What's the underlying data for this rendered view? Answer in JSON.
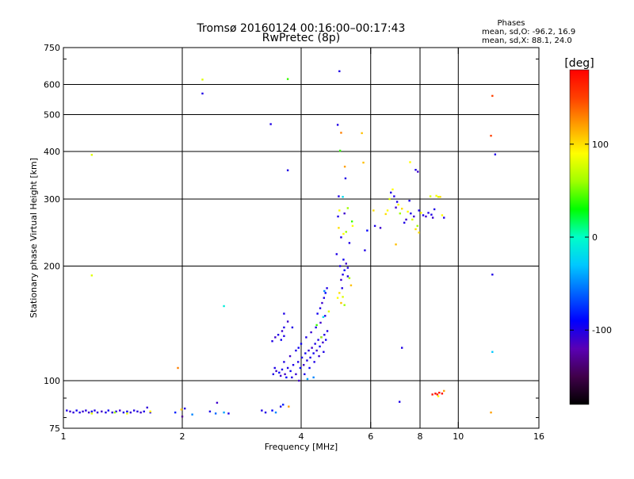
{
  "chart_data": {
    "type": "scatter",
    "title_line1": "Tromsø 20160124 00:16:00–00:17:43",
    "title_line2": "RwPretec (8p)",
    "info": {
      "heading": "Phases",
      "line1": "mean, sd,O: -96.2, 16.9",
      "line2": "mean, sd,X:  88.1, 24.0"
    },
    "xlabel": "Frequency [MHz]",
    "ylabel": "Stationary phase Virtual Height [km]",
    "x_scale": "log",
    "y_scale": "log",
    "xlim": [
      1,
      16
    ],
    "ylim": [
      75,
      750
    ],
    "x_ticks": [
      {
        "value": 1,
        "label": "1"
      },
      {
        "value": 2,
        "label": "2"
      },
      {
        "value": 4,
        "label": "4"
      },
      {
        "value": 6,
        "label": "6"
      },
      {
        "value": 8,
        "label": "8"
      },
      {
        "value": 10,
        "label": "10"
      },
      {
        "value": 16,
        "label": "16"
      }
    ],
    "y_ticks": [
      {
        "value": 75,
        "label": "75"
      },
      {
        "value": 100,
        "label": "100"
      },
      {
        "value": 200,
        "label": "200"
      },
      {
        "value": 300,
        "label": "300"
      },
      {
        "value": 400,
        "label": "400"
      },
      {
        "value": 500,
        "label": "500"
      },
      {
        "value": 600,
        "label": "600"
      },
      {
        "value": 750,
        "label": "750"
      }
    ],
    "x_grid": [
      2,
      4,
      6,
      8,
      10
    ],
    "y_grid": [
      100,
      200,
      300,
      400,
      500,
      600
    ],
    "grid": true,
    "colorbar": {
      "label": "[deg]",
      "range": [
        -180,
        180
      ],
      "ticks": [
        {
          "value": 100,
          "label": "100"
        },
        {
          "value": 0,
          "label": "0"
        },
        {
          "value": -100,
          "label": "-100"
        }
      ],
      "stops": [
        "#000000",
        "#40004a",
        "#5a00b4",
        "#0000ff",
        "#0064ff",
        "#00c8ff",
        "#00ffc8",
        "#00ff00",
        "#a0ff00",
        "#ffff00",
        "#ffa000",
        "#ff4000",
        "#ff0000"
      ]
    },
    "series": [
      {
        "values": [
          [
            1.02,
            83.5,
            -100
          ],
          [
            1.04,
            83,
            -110
          ],
          [
            1.06,
            82.5,
            -105
          ],
          [
            1.08,
            83.5,
            -95
          ],
          [
            1.1,
            82.5,
            -100
          ],
          [
            1.12,
            83,
            -108
          ],
          [
            1.14,
            83.5,
            -102
          ],
          [
            1.16,
            82.5,
            -110
          ],
          [
            1.18,
            83,
            -98
          ],
          [
            1.2,
            83.5,
            -100
          ],
          [
            1.22,
            82.5,
            -106
          ],
          [
            1.25,
            83,
            -112
          ],
          [
            1.28,
            82.5,
            -100
          ],
          [
            1.3,
            83.5,
            -95
          ],
          [
            1.33,
            82.5,
            -104
          ],
          [
            1.36,
            83,
            -100
          ],
          [
            1.39,
            83.5,
            -110
          ],
          [
            1.42,
            82.5,
            -100
          ],
          [
            1.45,
            83,
            -96
          ],
          [
            1.48,
            82.5,
            -108
          ],
          [
            1.51,
            83.5,
            -100
          ],
          [
            1.54,
            83,
            -102
          ],
          [
            1.57,
            82.5,
            -110
          ],
          [
            1.6,
            83,
            -98
          ],
          [
            1.63,
            85,
            -105
          ],
          [
            1.66,
            82.5,
            -100
          ],
          [
            1.35,
            82.5,
            60
          ],
          [
            1.45,
            82,
            80
          ],
          [
            1.18,
            82,
            80
          ],
          [
            1.66,
            83,
            95
          ],
          [
            1.92,
            82.5,
            -80
          ],
          [
            2.03,
            84.5,
            -100
          ],
          [
            2.12,
            81.5,
            -50
          ],
          [
            2.35,
            83,
            -100
          ],
          [
            2.43,
            82,
            -60
          ],
          [
            2.45,
            87.5,
            -110
          ],
          [
            2.55,
            82.5,
            -40
          ],
          [
            2.62,
            82,
            -100
          ],
          [
            3.18,
            83.5,
            -100
          ],
          [
            3.25,
            82.5,
            -100
          ],
          [
            3.38,
            83.5,
            -90
          ],
          [
            3.45,
            82.5,
            -50
          ],
          [
            3.55,
            85.5,
            -100
          ],
          [
            3.6,
            86.5,
            -80
          ],
          [
            3.72,
            85.5,
            120
          ],
          [
            1.99,
            84,
            110
          ],
          [
            2.0,
            80.5,
            -130
          ],
          [
            3.4,
            104,
            -100
          ],
          [
            3.46,
            106,
            -110
          ],
          [
            3.52,
            105,
            -90
          ],
          [
            3.58,
            107,
            -100
          ],
          [
            3.64,
            104,
            -112
          ],
          [
            3.7,
            108,
            -100
          ],
          [
            3.76,
            106,
            -95
          ],
          [
            3.82,
            110,
            -100
          ],
          [
            3.88,
            104,
            -108
          ],
          [
            3.93,
            112,
            -100
          ],
          [
            3.98,
            108,
            -90
          ],
          [
            4.02,
            115,
            -100
          ],
          [
            4.06,
            110,
            -110
          ],
          [
            4.1,
            118,
            -95
          ],
          [
            4.14,
            113,
            -100
          ],
          [
            4.18,
            120,
            -105
          ],
          [
            4.22,
            115,
            -100
          ],
          [
            4.26,
            122,
            -110
          ],
          [
            4.3,
            118,
            -95
          ],
          [
            4.34,
            125,
            -100
          ],
          [
            4.38,
            120,
            -108
          ],
          [
            4.42,
            128,
            -100
          ],
          [
            4.46,
            123,
            -95
          ],
          [
            4.5,
            130,
            -100
          ],
          [
            4.54,
            126,
            -110
          ],
          [
            4.58,
            132,
            -100
          ],
          [
            4.62,
            128,
            -95
          ],
          [
            4.66,
            135,
            -100
          ],
          [
            3.43,
            108,
            -100
          ],
          [
            3.55,
            103,
            -110
          ],
          [
            3.67,
            102,
            -90
          ],
          [
            3.79,
            102,
            -100
          ],
          [
            3.95,
            100,
            -112
          ],
          [
            4.08,
            104,
            -100
          ],
          [
            4.2,
            108,
            -95
          ],
          [
            4.32,
            112,
            -100
          ],
          [
            4.44,
            116,
            -108
          ],
          [
            4.56,
            119,
            -100
          ],
          [
            4.15,
            101,
            -40
          ],
          [
            4.3,
            102,
            -50
          ],
          [
            3.62,
            112,
            -100
          ],
          [
            3.75,
            116,
            -110
          ],
          [
            3.88,
            120,
            -100
          ],
          [
            4.0,
            125,
            -95
          ],
          [
            4.12,
            130,
            -100
          ],
          [
            4.24,
            134,
            -108
          ],
          [
            4.36,
            138,
            -100
          ],
          [
            4.48,
            142,
            -110
          ],
          [
            4.6,
            148,
            -100
          ],
          [
            4.4,
            150,
            -95
          ],
          [
            4.47,
            155,
            -100
          ],
          [
            4.52,
            160,
            -110
          ],
          [
            4.57,
            165,
            -100
          ],
          [
            4.61,
            170,
            -90
          ],
          [
            4.65,
            175,
            -100
          ],
          [
            4.58,
            172,
            -50
          ],
          [
            3.38,
            127,
            -100
          ],
          [
            3.44,
            130,
            -110
          ],
          [
            3.5,
            132,
            -100
          ],
          [
            3.56,
            128,
            -95
          ],
          [
            3.62,
            131,
            -100
          ],
          [
            3.58,
            135,
            -110
          ],
          [
            3.62,
            138,
            -100
          ],
          [
            3.62,
            150,
            -100
          ],
          [
            3.7,
            143,
            -110
          ],
          [
            3.8,
            138,
            -100
          ],
          [
            3.94,
            122,
            -95
          ],
          [
            4.38,
            140,
            40
          ],
          [
            4.5,
            130,
            60
          ],
          [
            4.7,
            152,
            80
          ],
          [
            4.55,
            147,
            -20
          ],
          [
            4.95,
            165,
            90
          ],
          [
            5.05,
            160,
            110
          ],
          [
            5.1,
            166,
            80
          ],
          [
            5.0,
            170,
            100
          ],
          [
            5.15,
            158,
            60
          ],
          [
            5.08,
            175,
            -100
          ],
          [
            5.05,
            184,
            -110
          ],
          [
            5.1,
            190,
            -100
          ],
          [
            5.15,
            195,
            -90
          ],
          [
            5.02,
            200,
            -100
          ],
          [
            5.2,
            203,
            -110
          ],
          [
            5.12,
            208,
            -95
          ],
          [
            5.25,
            198,
            -100
          ],
          [
            4.92,
            215,
            -100
          ],
          [
            5.3,
            186,
            60
          ],
          [
            5.35,
            178,
            110
          ],
          [
            5.25,
            188,
            -100
          ],
          [
            5.05,
            238,
            -100
          ],
          [
            5.12,
            243,
            90
          ],
          [
            5.2,
            246,
            60
          ],
          [
            5.3,
            230,
            -100
          ],
          [
            4.98,
            252,
            100
          ],
          [
            4.96,
            270,
            -100
          ],
          [
            5.15,
            275,
            -110
          ],
          [
            5.25,
            284,
            60
          ],
          [
            5.4,
            255,
            90
          ],
          [
            5.0,
            280,
            90
          ],
          [
            4.98,
            305,
            -100
          ],
          [
            5.1,
            304,
            -20
          ],
          [
            5.18,
            340,
            -100
          ],
          [
            5.16,
            365,
            120
          ],
          [
            5.38,
            262,
            40
          ],
          [
            5.8,
            220,
            -100
          ],
          [
            5.88,
            248,
            -90
          ],
          [
            6.15,
            255,
            -100
          ],
          [
            6.35,
            252,
            -110
          ],
          [
            6.55,
            274,
            100
          ],
          [
            6.62,
            280,
            90
          ],
          [
            6.7,
            300,
            80
          ],
          [
            6.75,
            312,
            -100
          ],
          [
            6.82,
            318,
            90
          ],
          [
            6.88,
            305,
            -100
          ],
          [
            6.95,
            285,
            -110
          ],
          [
            7.0,
            295,
            -100
          ],
          [
            7.05,
            290,
            90
          ],
          [
            7.12,
            275,
            60
          ],
          [
            7.2,
            283,
            100
          ],
          [
            7.3,
            260,
            -100
          ],
          [
            7.38,
            265,
            -110
          ],
          [
            7.45,
            278,
            90
          ],
          [
            7.52,
            297,
            -100
          ],
          [
            7.58,
            275,
            -100
          ],
          [
            7.65,
            265,
            80
          ],
          [
            7.72,
            270,
            -110
          ],
          [
            7.8,
            250,
            100
          ],
          [
            7.88,
            255,
            60
          ],
          [
            7.95,
            280,
            -100
          ],
          [
            8.05,
            276,
            90
          ],
          [
            8.15,
            272,
            -100
          ],
          [
            8.28,
            270,
            -110
          ],
          [
            8.4,
            276,
            -100
          ],
          [
            8.55,
            273,
            -100
          ],
          [
            8.62,
            268,
            -110
          ],
          [
            8.7,
            282,
            -100
          ],
          [
            8.8,
            306,
            90
          ],
          [
            8.9,
            304,
            80
          ],
          [
            9.0,
            304,
            100
          ],
          [
            9.1,
            272,
            90
          ],
          [
            9.2,
            268,
            -100
          ],
          [
            8.5,
            305,
            80
          ],
          [
            7.55,
            375,
            90
          ],
          [
            7.8,
            358,
            -100
          ],
          [
            7.9,
            354,
            -110
          ],
          [
            6.1,
            280,
            100
          ],
          [
            6.95,
            228,
            110
          ],
          [
            7.95,
            245,
            100
          ],
          [
            8.6,
            92,
            170
          ],
          [
            8.75,
            92.5,
            175
          ],
          [
            8.85,
            92,
            165
          ],
          [
            8.95,
            93,
            170
          ],
          [
            9.1,
            92.5,
            175
          ],
          [
            9.2,
            94,
            120
          ],
          [
            8.9,
            91,
            90
          ],
          [
            7.2,
            122,
            -100
          ],
          [
            7.1,
            88,
            -100
          ],
          [
            12.2,
            560,
            150
          ],
          [
            12.1,
            440,
            150
          ],
          [
            12.4,
            393,
            -100
          ],
          [
            12.2,
            190,
            -100
          ],
          [
            12.2,
            119,
            -30
          ],
          [
            12.1,
            82.5,
            120
          ],
          [
            5.0,
            650,
            -100
          ],
          [
            4.95,
            470,
            -100
          ],
          [
            5.05,
            448,
            130
          ],
          [
            5.7,
            447,
            110
          ],
          [
            5.75,
            374,
            110
          ],
          [
            5.02,
            402,
            40
          ],
          [
            3.7,
            357,
            -100
          ],
          [
            3.35,
            472,
            -100
          ],
          [
            3.7,
            620,
            40
          ],
          [
            2.25,
            618,
            80
          ],
          [
            2.25,
            568,
            -100
          ],
          [
            1.18,
            392,
            80
          ],
          [
            1.18,
            189,
            80
          ],
          [
            2.55,
            157,
            -10
          ],
          [
            1.95,
            108,
            130
          ]
        ]
      }
    ]
  }
}
